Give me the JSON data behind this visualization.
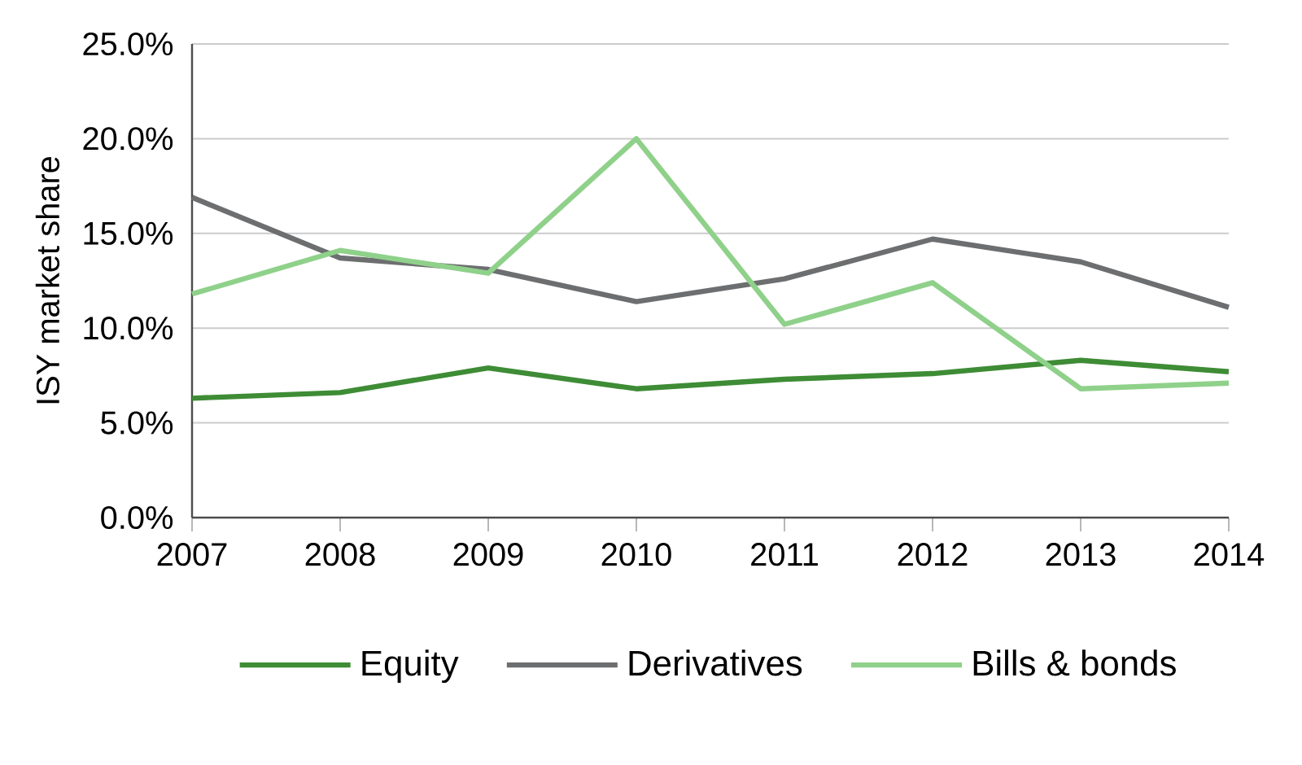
{
  "chart_data": {
    "type": "line",
    "ylabel": "ISY market share",
    "x": [
      2007,
      2008,
      2009,
      2010,
      2011,
      2012,
      2013,
      2014
    ],
    "xlim": [
      2007,
      2014
    ],
    "xticks": [
      2007,
      2008,
      2009,
      2010,
      2011,
      2012,
      2013,
      2014
    ],
    "ylim": [
      0,
      25
    ],
    "yticks": [
      {
        "value": 0,
        "label": "0.0%"
      },
      {
        "value": 5,
        "label": "5.0%"
      },
      {
        "value": 10,
        "label": "10.0%"
      },
      {
        "value": 15,
        "label": "15.0%"
      },
      {
        "value": 20,
        "label": "20.0%"
      },
      {
        "value": 25,
        "label": "25.0%"
      }
    ],
    "grid": "y",
    "legend": "bottom",
    "marker": "none",
    "line_style": "solid",
    "series": [
      {
        "name": "Equity",
        "color": "#3e8c35",
        "values": [
          6.3,
          6.6,
          7.9,
          6.8,
          7.3,
          7.6,
          8.3,
          7.7
        ]
      },
      {
        "name": "Derivatives",
        "color": "#6d6e70",
        "values": [
          16.9,
          13.7,
          13.1,
          11.4,
          12.6,
          14.7,
          13.5,
          11.1
        ]
      },
      {
        "name": "Bills & bonds",
        "color": "#8fd18a",
        "values": [
          11.8,
          14.1,
          12.9,
          20.0,
          10.2,
          12.4,
          6.8,
          7.1
        ]
      }
    ]
  }
}
